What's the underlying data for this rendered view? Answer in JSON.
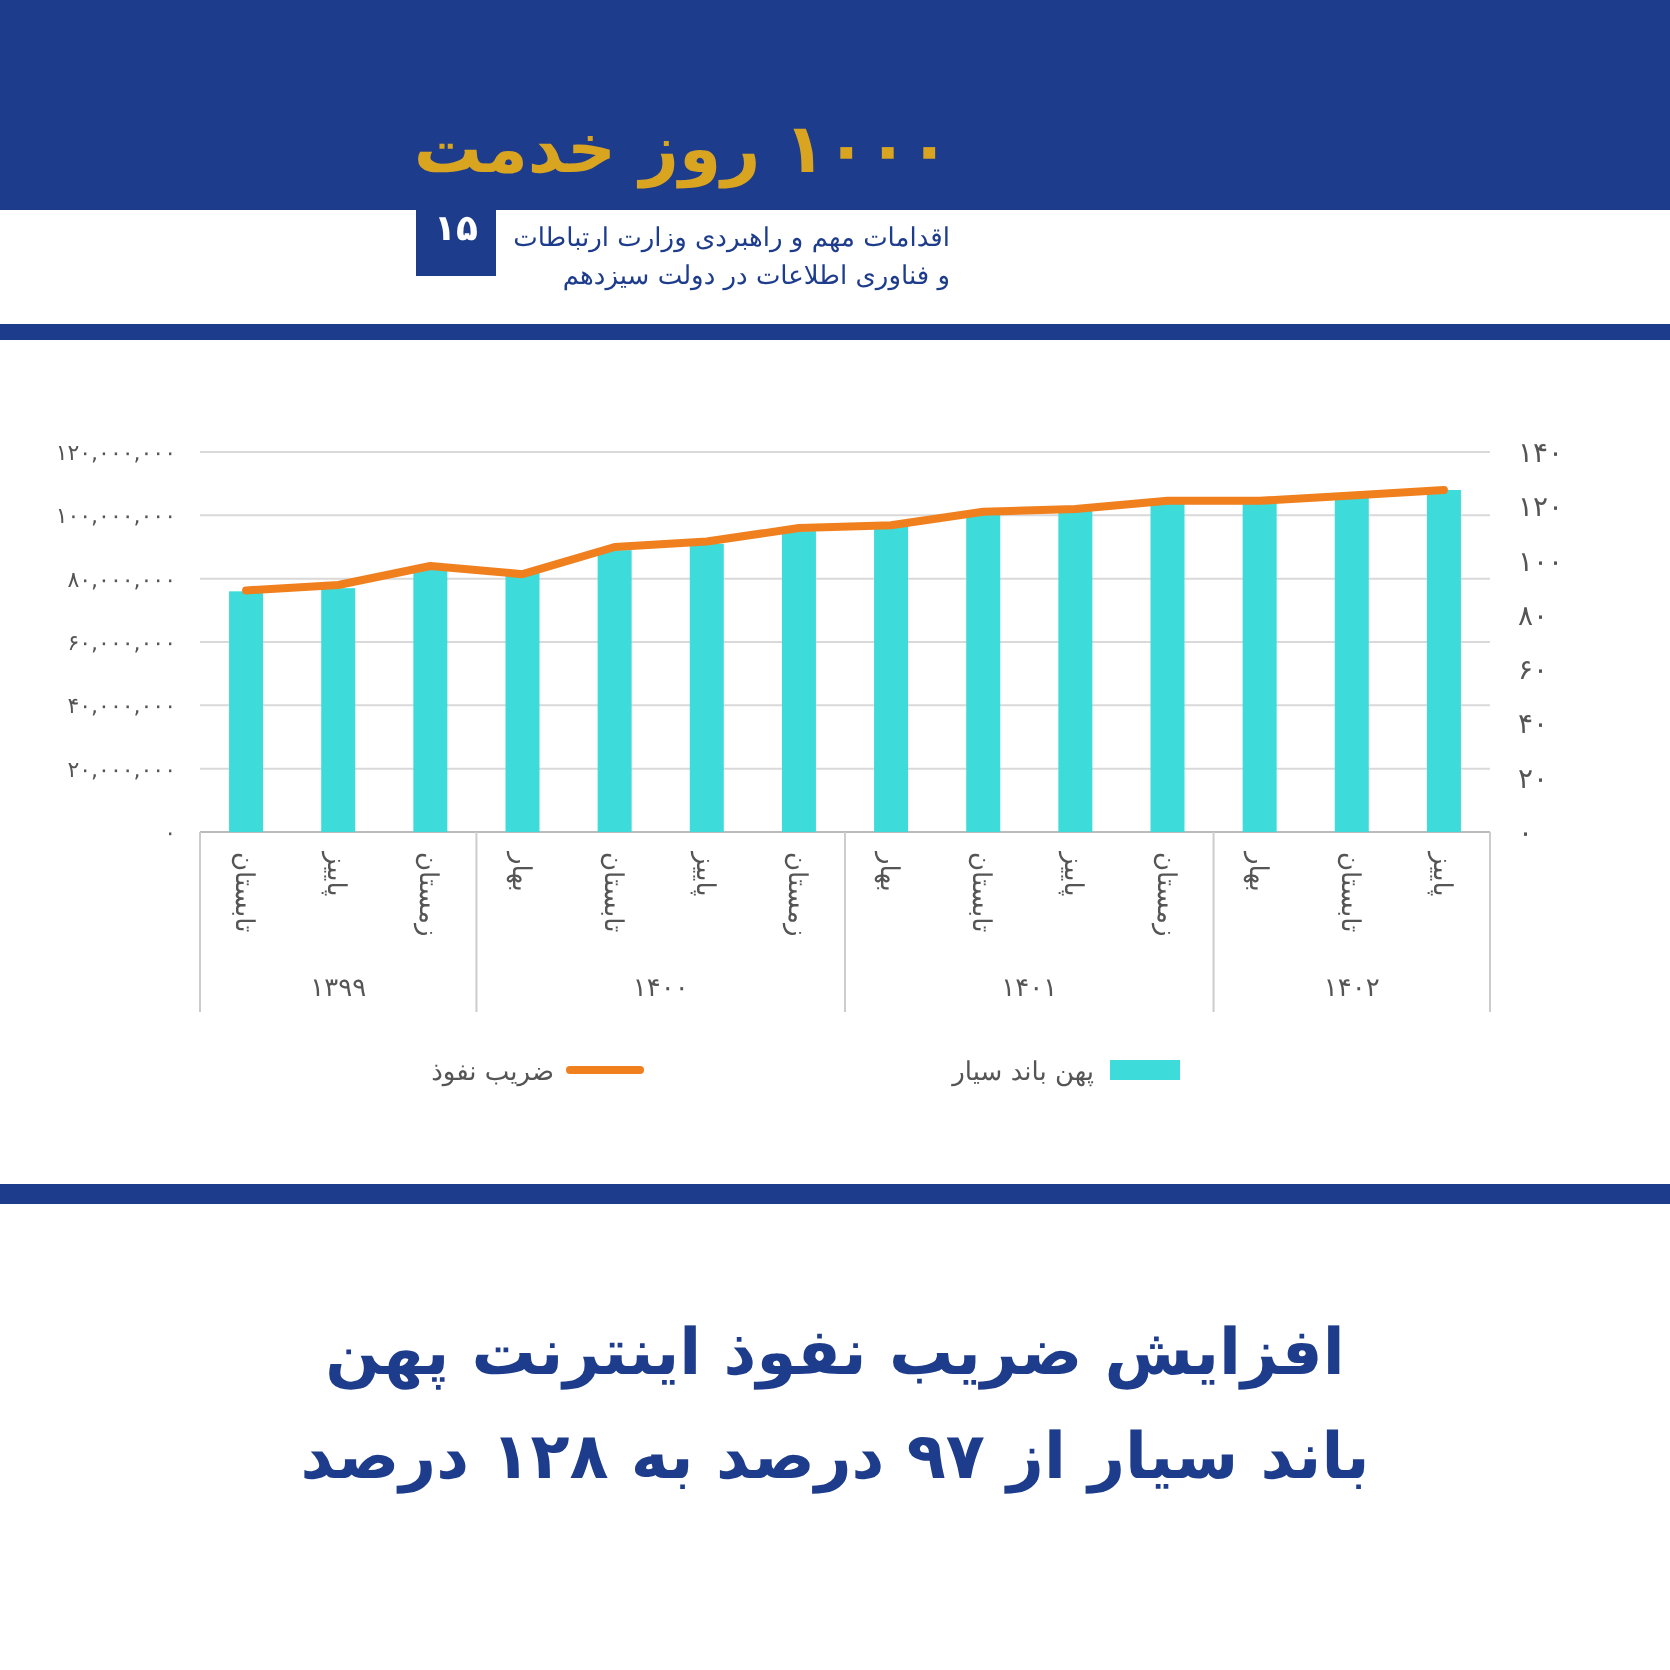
{
  "chart_data": {
    "type": "bar",
    "title": "افزایش ضریب نفوذ اینترنت پهن باند سیار از ۹۷ درصد به ۱۲۸ درصد",
    "annotations": [
      "۱۰۰۰ روز خدمت",
      "۱۵",
      "اقدامات مهم و راهبردی وزارت ارتباطات و فناوری اطلاعات در دولت سیزدهم",
      "۱۳۹۹",
      "۱۴۰۰",
      "۱۴۰۱",
      "۱۴۰۲"
    ],
    "categories": [
      "تابستان",
      "پاییز",
      "زمستان",
      "بهار",
      "تابستان",
      "پاییز",
      "زمستان",
      "بهار",
      "تابستان",
      "پاییز",
      "زمستان",
      "بهار",
      "تابستان",
      "پاییز"
    ],
    "series": [
      {
        "name": "پهن باند سیار",
        "color": "#3ddbd9",
        "values": [
          76000000,
          77000000,
          84000000,
          82000000,
          89000000,
          91000000,
          95000000,
          97000000,
          101000000,
          102000000,
          105000000,
          105000000,
          107000000,
          108000000
        ]
      },
      {
        "name": "ضریب نفوذ",
        "type": "line",
        "axis": "y2",
        "color": "#f07f1e",
        "values": [
          89,
          91,
          98,
          95,
          105,
          107,
          112,
          113,
          118,
          119,
          122,
          122,
          124,
          126
        ]
      }
    ],
    "ylim": [
      0,
      120000000
    ],
    "yticks": [
      {
        "value": 0,
        "label": "۰"
      },
      {
        "value": 20000000,
        "label": "۲۰,۰۰۰,۰۰۰"
      },
      {
        "value": 40000000,
        "label": "۴۰,۰۰۰,۰۰۰"
      },
      {
        "value": 60000000,
        "label": "۶۰,۰۰۰,۰۰۰"
      },
      {
        "value": 80000000,
        "label": "۸۰,۰۰۰,۰۰۰"
      },
      {
        "value": 100000000,
        "label": "۱۰۰,۰۰۰,۰۰۰"
      },
      {
        "value": 120000000,
        "label": "۱۲۰,۰۰۰,۰۰۰"
      }
    ],
    "y2lim": [
      0,
      140
    ],
    "y2ticks": [
      {
        "value": 0,
        "label": "۰"
      },
      {
        "value": 20,
        "label": "۲۰"
      },
      {
        "value": 40,
        "label": "۴۰"
      },
      {
        "value": 60,
        "label": "۶۰"
      },
      {
        "value": 80,
        "label": "۸۰"
      },
      {
        "value": 100,
        "label": "۱۰۰"
      },
      {
        "value": 120,
        "label": "۱۲۰"
      },
      {
        "value": 140,
        "label": "۱۴۰"
      }
    ],
    "grid": "y",
    "legend": "bottom",
    "marker": "none",
    "line_style": "solid"
  }
}
